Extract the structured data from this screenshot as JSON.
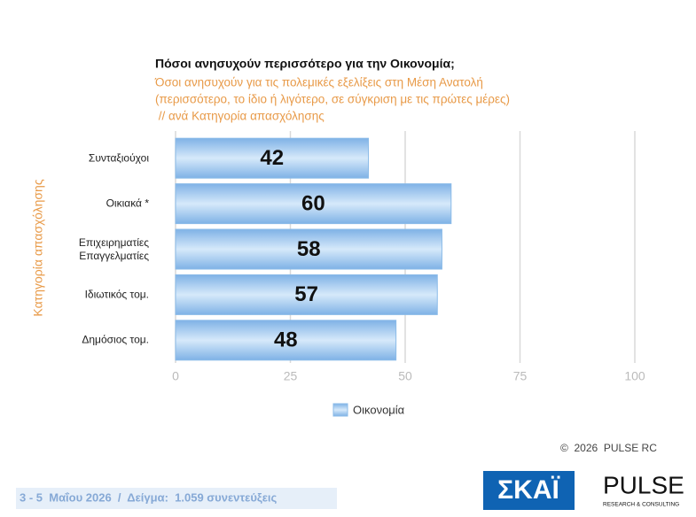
{
  "chart_data": {
    "type": "bar",
    "orientation": "horizontal",
    "title": "Πόσοι ανησυχούν περισσότερο για την Οικονομία;",
    "subtitle": [
      "Όσοι ανησυχούν για τις πολεμικές εξελίξεις στη Μέση Ανατολή",
      "(περισσότερο, το ίδιο ή λιγότερο, σε σύγκριση με τις πρώτες μέρες)",
      " // ανά Κατηγορία απασχόλησης"
    ],
    "y_label": "Κατηγορία απασχόλησης",
    "categories": [
      "Συνταξιούχοι",
      "Οικιακά *",
      "Επιχειρηματίες\nΕπαγγελματίες",
      "Ιδιωτικός τομ.",
      "Δημόσιος τομ."
    ],
    "series": [
      {
        "name": "Οικονομία",
        "color": "#8fbfec",
        "values": [
          42,
          60,
          58,
          57,
          48
        ]
      }
    ],
    "xlim": [
      0,
      100
    ],
    "xticks": [
      0,
      25,
      50,
      75,
      100
    ],
    "grid": true,
    "legend": "bottom"
  },
  "footer": {
    "copyright": "©  2026  PULSE RC",
    "sample": "3 - 5  Μαΐου 2026  /  Δείγμα:  1.059 συνεντεύξεις",
    "logo_skai": "ΣΚΑΪ",
    "logo_pulse": "PULSE",
    "logo_pulse_sub": "RESEARCH & CONSULTING"
  }
}
